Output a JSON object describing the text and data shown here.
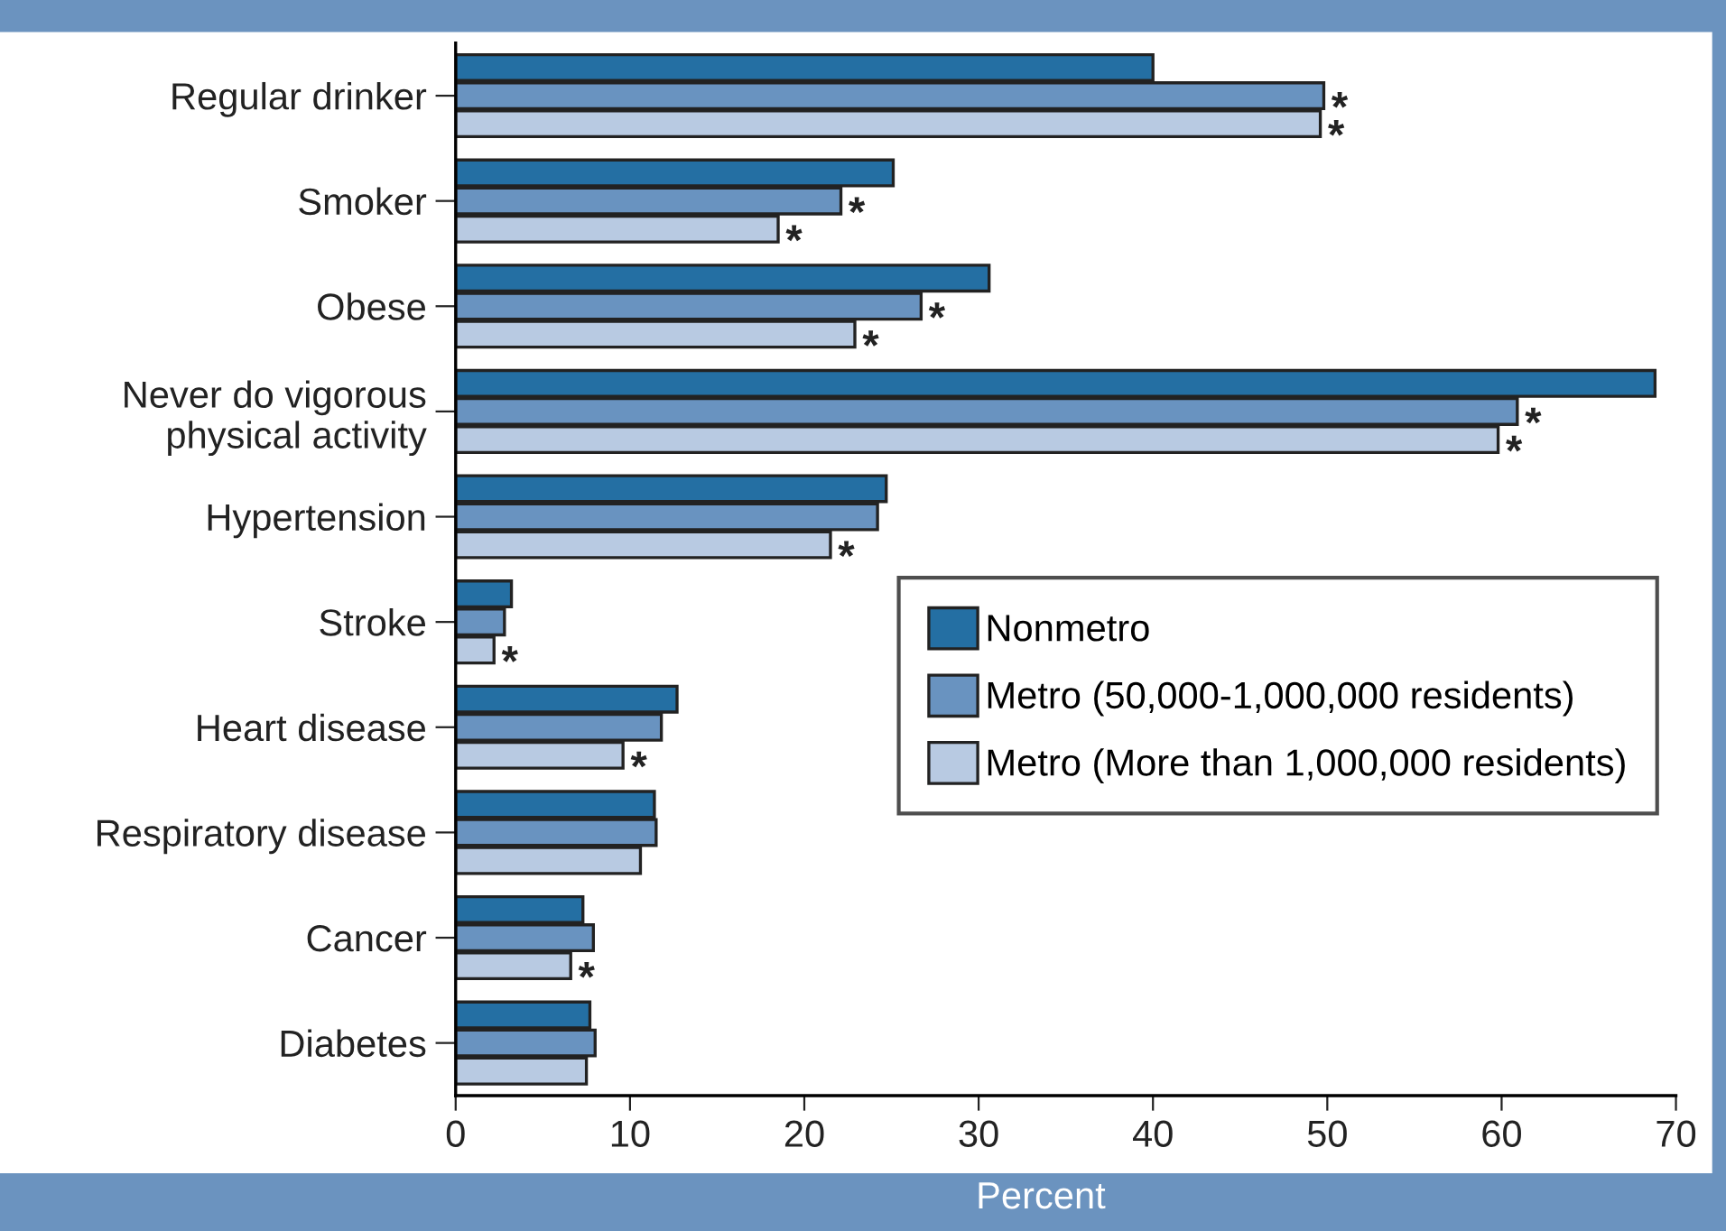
{
  "chart_data": {
    "type": "bar",
    "orientation": "horizontal",
    "xlabel": "Percent",
    "categories": [
      "Regular drinker",
      "Smoker",
      "Obese",
      "Never do vigorous\nphysical activity",
      "Hypertension",
      "Stroke",
      "Heart disease",
      "Respiratory disease",
      "Cancer",
      "Diabetes"
    ],
    "series": [
      {
        "name": "Nonmetro",
        "color": "#246fa3",
        "values": [
          40,
          25.1,
          30.6,
          68.8,
          24.7,
          3.2,
          12.7,
          11.4,
          7.3,
          7.7
        ]
      },
      {
        "name": "Metro (50,000-1,000,000 residents)",
        "color": "#6993c0",
        "values": [
          49.8,
          22.1,
          26.7,
          60.9,
          24.2,
          2.8,
          11.8,
          11.5,
          7.9,
          8.0
        ],
        "value_labels": [
          "*",
          "*",
          "*",
          "*",
          null,
          null,
          null,
          null,
          null,
          null
        ]
      },
      {
        "name": "Metro (More than 1,000,000 residents)",
        "color": "#b8cae2",
        "values": [
          49.6,
          18.5,
          22.9,
          59.8,
          21.5,
          2.2,
          9.6,
          10.6,
          6.6,
          7.5
        ],
        "value_labels": [
          "*",
          "*",
          "*",
          "*",
          "*",
          "*",
          "*",
          null,
          "*",
          null
        ]
      }
    ],
    "xlim": [
      0,
      70
    ],
    "xticks": [
      0,
      10,
      20,
      30,
      40,
      50,
      60,
      70
    ],
    "grid": false,
    "legend": "right"
  }
}
